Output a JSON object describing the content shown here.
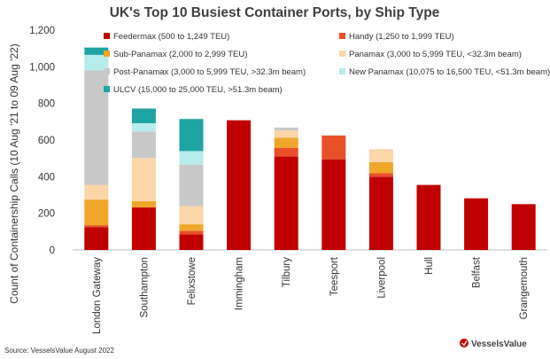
{
  "chart_data": {
    "type": "bar",
    "stacked": true,
    "title": "UK's Top 10 Busiest Container Ports, by Ship Type",
    "xlabel": "",
    "ylabel": "Count of Containership Calls (10 Aug '21 to 09 Aug '22)",
    "ylim": [
      0,
      1200
    ],
    "yticks": [
      "0",
      "200",
      "400",
      "600",
      "800",
      "1,000",
      "1,200"
    ],
    "ytick_values": [
      0,
      200,
      400,
      600,
      800,
      1000,
      1200
    ],
    "grid": false,
    "legend_position": "top",
    "categories": [
      "London Gateway",
      "Southampton",
      "Felixstowe",
      "Immingham",
      "Tilbury",
      "Teesport",
      "Liverpool",
      "Hull",
      "Belfast",
      "Grangemouth"
    ],
    "series": [
      {
        "name": "Feedermax (500 to 1,249 TEU)",
        "color": "#c00000",
        "values": [
          125,
          232,
          85,
          708,
          510,
          495,
          400,
          355,
          282,
          250
        ]
      },
      {
        "name": "Handy (1,250 to 1,999 TEU)",
        "color": "#e8502a",
        "values": [
          10,
          0,
          20,
          0,
          48,
          130,
          20,
          0,
          0,
          0
        ]
      },
      {
        "name": "Sub-Panamax (2,000 to 2,999 TEU)",
        "color": "#f0a62a",
        "values": [
          140,
          35,
          35,
          0,
          55,
          0,
          60,
          0,
          0,
          0
        ]
      },
      {
        "name": "Panamax (3,000 to 5,999 TEU, <32.3m beam)",
        "color": "#fbd6a8",
        "values": [
          80,
          235,
          100,
          0,
          40,
          0,
          70,
          0,
          0,
          0
        ]
      },
      {
        "name": "Post-Panamax (3,000 to 5,999 TEU, >32.3m beam)",
        "color": "#c8c8c8",
        "values": [
          625,
          145,
          225,
          0,
          15,
          0,
          0,
          0,
          0,
          0
        ]
      },
      {
        "name": "New Panamax (10,075 to 16,500 TEU, <51.3m beam)",
        "color": "#b8ecec",
        "values": [
          85,
          45,
          75,
          0,
          0,
          0,
          0,
          0,
          0,
          0
        ]
      },
      {
        "name": "ULCV (15,000 to 25,000 TEU, >51.3m beam)",
        "color": "#20a3a3",
        "values": [
          40,
          80,
          175,
          0,
          0,
          0,
          0,
          0,
          0,
          0
        ]
      }
    ],
    "legend_labels": [
      "Feedermax (500 to 1,249 TEU)",
      "Handy (1,250 to 1,999 TEU)",
      "Sub-Panamax (2,000 to 2,999 TEU)",
      "Panamax (3,000 to 5,999 TEU, <32.3m beam)",
      "Post-Panamax (3,000 to 5,999 TEU, >32.3m beam)",
      "New Panamax (10,075 to 16,500 TEU, <51.3m beam)",
      "ULCV (15,000 to 25,000 TEU, >51.3m beam)"
    ]
  },
  "source": "Source: VesselsValue August 2022",
  "brand": "VesselsValue"
}
